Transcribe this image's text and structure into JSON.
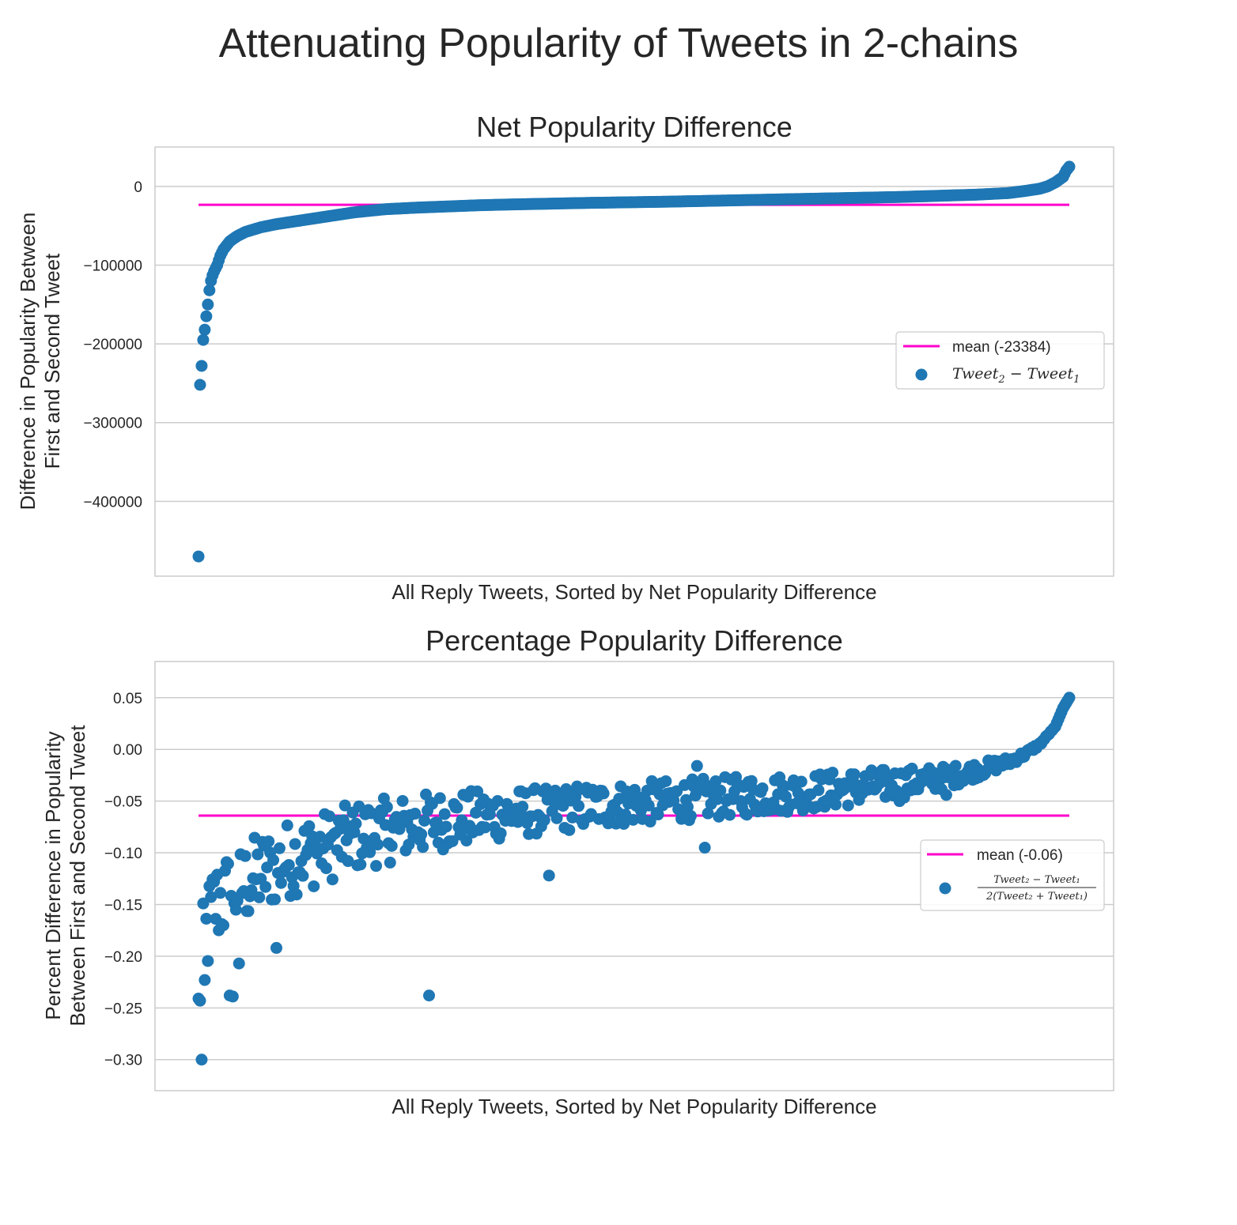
{
  "figure": {
    "suptitle": "Attenuating Popularity of Tweets in 2-chains"
  },
  "chart_data": [
    {
      "type": "scatter",
      "title": "Net Popularity Difference",
      "xlabel": "All Reply Tweets, Sorted by Net Popularity Difference",
      "ylabel_line1": "Difference in Popularity Between",
      "ylabel_line2": "First and Second Tweet",
      "ylim": [
        -495000,
        50000
      ],
      "yticks": [
        0,
        -100000,
        -200000,
        -300000,
        -400000
      ],
      "ytick_labels": [
        "0",
        "−100000",
        "−200000",
        "−300000",
        "−400000"
      ],
      "xticks_visible": false,
      "grid": "horizontal",
      "legend_position": "center-right",
      "n_points": 560,
      "mean": {
        "name": "mean (-23384)",
        "value": -23384,
        "color": "#ff00cc"
      },
      "series": [
        {
          "name": "Tweet_2 - Tweet_1",
          "legend_base": "Tweet",
          "legend_sub2": "2",
          "legend_minus": " − ",
          "legend_sub1": "1",
          "color": "#1f77b4",
          "curve_index": [
            0,
            1,
            2,
            3,
            4,
            5,
            6,
            7,
            8,
            9,
            10,
            11,
            12,
            13,
            14,
            15,
            16,
            18,
            20,
            22,
            25,
            30,
            35,
            40,
            45,
            50,
            60,
            70,
            80,
            90,
            100,
            120,
            140,
            160,
            180,
            200,
            250,
            300,
            350,
            400,
            450,
            500,
            520,
            530,
            540,
            545,
            550,
            555,
            557,
            559
          ],
          "curve_value": [
            -470000,
            -252000,
            -228000,
            -195000,
            -182000,
            -165000,
            -150000,
            -132000,
            -120000,
            -113000,
            -108000,
            -104000,
            -100000,
            -94000,
            -88000,
            -84000,
            -80000,
            -75000,
            -70000,
            -67000,
            -63000,
            -58000,
            -55000,
            -52000,
            -50000,
            -48000,
            -45000,
            -42000,
            -39000,
            -36000,
            -33000,
            -29000,
            -27000,
            -25500,
            -24000,
            -23000,
            -21000,
            -19500,
            -17500,
            -15500,
            -13500,
            -10500,
            -8500,
            -6000,
            -3000,
            0,
            5000,
            12000,
            20000,
            25000
          ]
        }
      ]
    },
    {
      "type": "scatter",
      "title": "Percentage Popularity Difference",
      "xlabel": "All Reply Tweets, Sorted by Net Popularity Difference",
      "ylabel_line1": "Percent Difference in Popularity",
      "ylabel_line2": "Between First and Second Tweet",
      "ylim": [
        -0.33,
        0.085
      ],
      "yticks": [
        0.05,
        0.0,
        -0.05,
        -0.1,
        -0.15,
        -0.2,
        -0.25,
        -0.3
      ],
      "ytick_labels": [
        "0.05",
        "0.00",
        "−0.05",
        "−0.10",
        "−0.15",
        "−0.20",
        "−0.25",
        "−0.30"
      ],
      "xticks_visible": false,
      "grid": "horizontal",
      "legend_position": "center-right",
      "n_points": 560,
      "mean": {
        "name": "mean (-0.06)",
        "value": -0.064,
        "color": "#ff00cc"
      },
      "series": [
        {
          "name": "(Tweet_2 - Tweet_1) / 2(Tweet_2 + Tweet_1)",
          "legend_numerator": "Tweet₂ − Tweet₁",
          "legend_denominator": "2(Tweet₂ + Tweet₁)",
          "color": "#1f77b4",
          "trend_index": [
            0,
            5,
            10,
            20,
            40,
            60,
            80,
            100,
            150,
            200,
            250,
            300,
            350,
            400,
            450,
            480,
            500,
            520,
            530,
            540,
            550,
            555,
            559
          ],
          "trend_value": [
            -0.22,
            -0.18,
            -0.15,
            -0.14,
            -0.12,
            -0.105,
            -0.095,
            -0.085,
            -0.07,
            -0.062,
            -0.055,
            -0.05,
            -0.045,
            -0.04,
            -0.033,
            -0.027,
            -0.02,
            -0.012,
            -0.005,
            0.005,
            0.022,
            0.04,
            0.05
          ],
          "spread": [
            0.03,
            0.025,
            0.022,
            0.02,
            0.015,
            0.013,
            0.012,
            0.011,
            0.008,
            0.005,
            0.002,
            0.0,
            0.0
          ],
          "spread_index": [
            0,
            40,
            80,
            120,
            200,
            280,
            360,
            420,
            470,
            500,
            530,
            550,
            559
          ],
          "outliers": [
            {
              "index": 2,
              "value": -0.3
            },
            {
              "index": 0,
              "value": -0.241
            },
            {
              "index": 1,
              "value": -0.243
            },
            {
              "index": 4,
              "value": -0.223
            },
            {
              "index": 20,
              "value": -0.238
            },
            {
              "index": 22,
              "value": -0.239
            },
            {
              "index": 26,
              "value": -0.207
            },
            {
              "index": 148,
              "value": -0.238
            },
            {
              "index": 50,
              "value": -0.192
            },
            {
              "index": 225,
              "value": -0.122
            },
            {
              "index": 325,
              "value": -0.095
            },
            {
              "index": 320,
              "value": -0.016
            },
            {
              "index": 450,
              "value": -0.05
            },
            {
              "index": 480,
              "value": -0.044
            }
          ]
        }
      ]
    }
  ]
}
